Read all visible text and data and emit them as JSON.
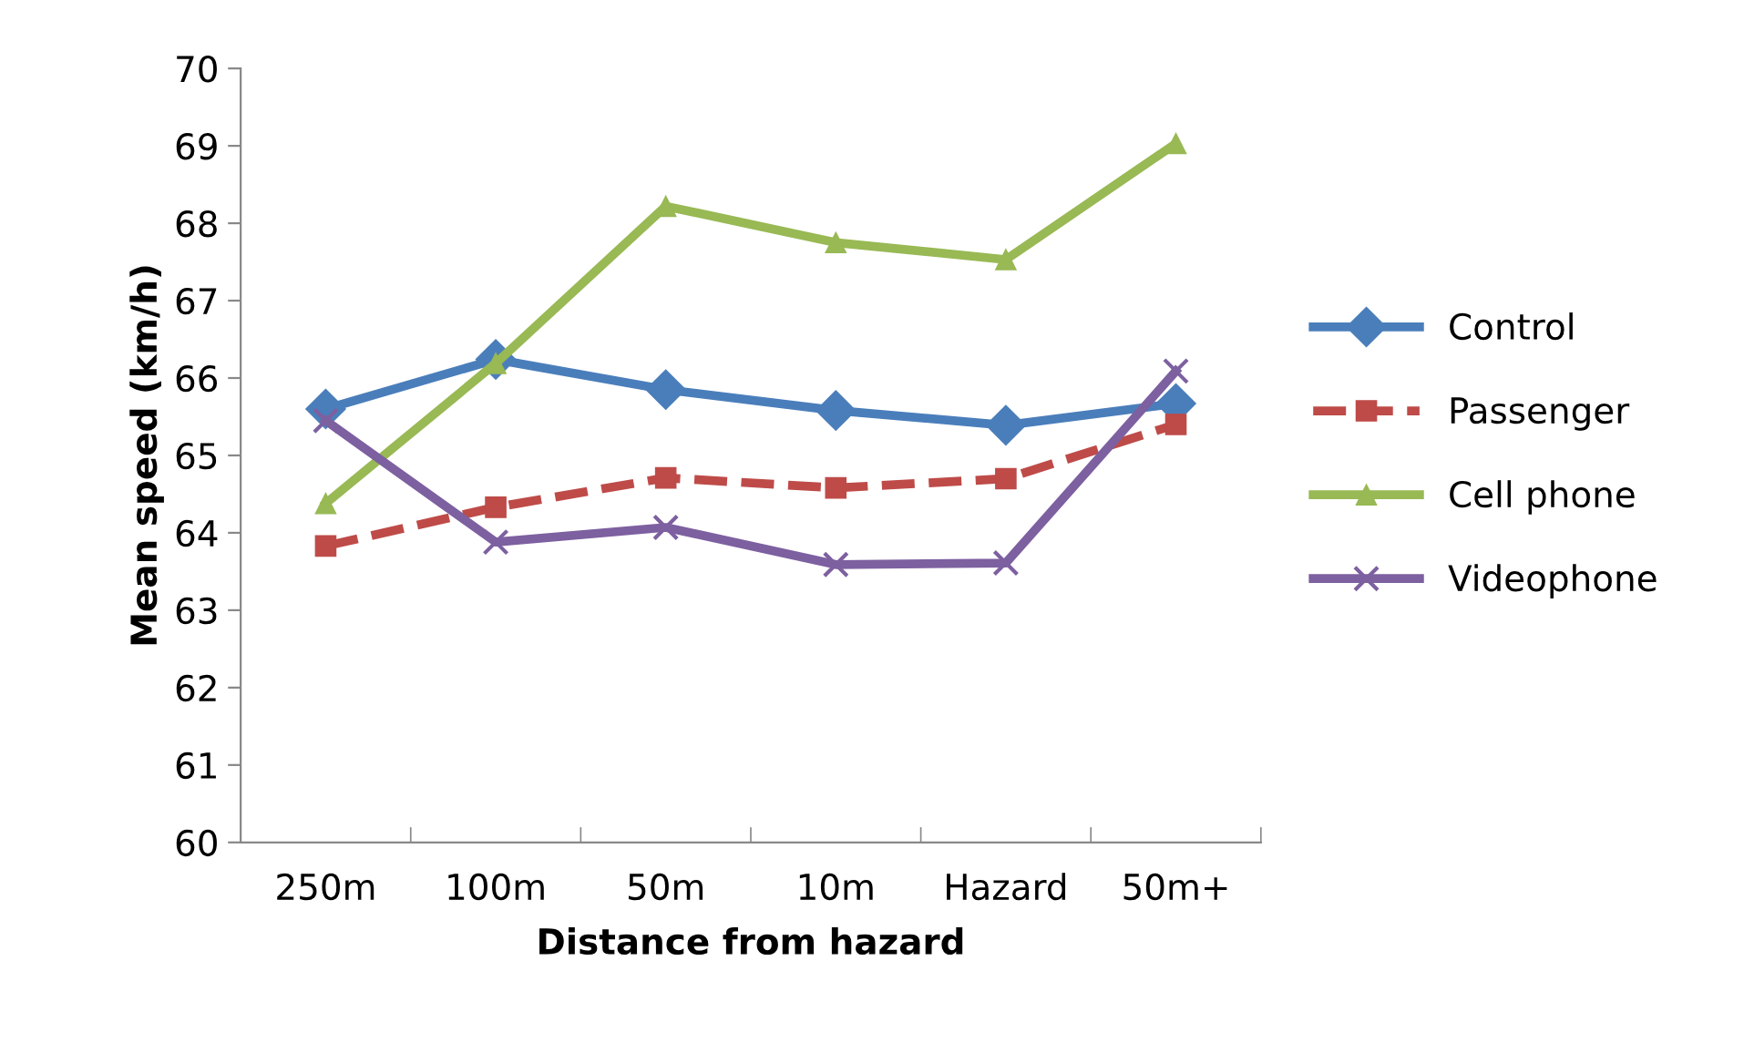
{
  "chart_data": {
    "type": "line",
    "xlabel": "Distance from hazard",
    "ylabel": "Mean speed (km/h)",
    "categories": [
      "250m",
      "100m",
      "50m",
      "10m",
      "Hazard",
      "50m+"
    ],
    "ylim": [
      60,
      70
    ],
    "yticks": [
      60,
      61,
      62,
      63,
      64,
      65,
      66,
      67,
      68,
      69,
      70
    ],
    "grid": false,
    "legend": "right",
    "series": [
      {
        "name": "Control",
        "color": "#4a7ebb",
        "marker": "diamond",
        "line_style": "solid",
        "values": [
          65.6,
          66.24,
          65.85,
          65.58,
          65.39,
          65.67
        ]
      },
      {
        "name": "Passenger",
        "color": "#be4b48",
        "marker": "square",
        "line_style": "dashed",
        "values": [
          63.83,
          64.33,
          64.71,
          64.58,
          64.7,
          65.4
        ]
      },
      {
        "name": "Cell phone",
        "color": "#98b954",
        "marker": "triangle",
        "line_style": "solid",
        "values": [
          64.38,
          66.19,
          68.22,
          67.75,
          67.53,
          69.03
        ]
      },
      {
        "name": "Videophone",
        "color": "#7d60a0",
        "marker": "cross",
        "line_style": "solid",
        "values": [
          65.45,
          63.88,
          64.07,
          63.59,
          63.61,
          66.09
        ]
      }
    ]
  }
}
